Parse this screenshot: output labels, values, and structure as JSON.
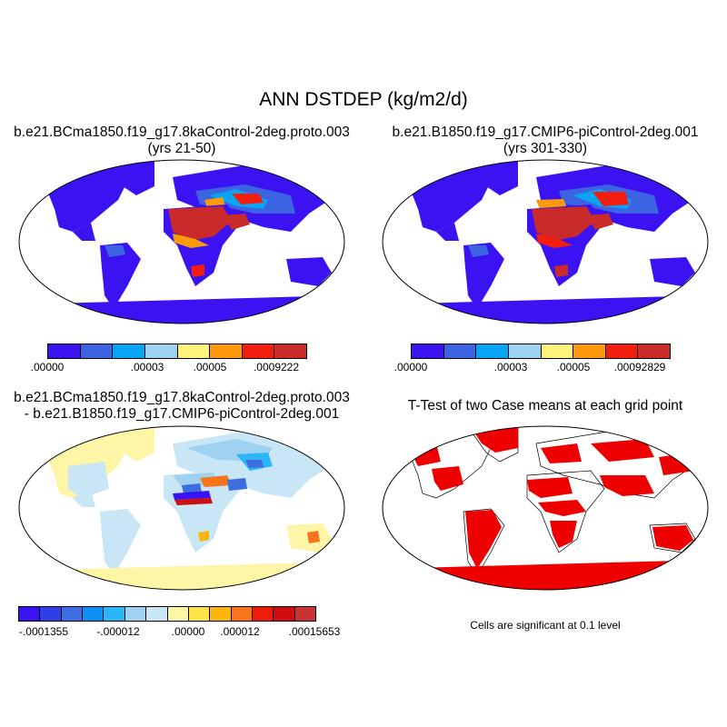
{
  "title": "ANN DSTDEP (kg/m2/d)",
  "panels": [
    {
      "title1": "b.e21.BCma1850.f19_g17.8kaControl-2deg.proto.003",
      "title2": "(yrs 21-50)",
      "colorbar": {
        "colors": [
          "#3b13f3",
          "#3c63e1",
          "#0aa4f5",
          "#9fd2f0",
          "#fdf27a",
          "#fd9a0c",
          "#f41e0e",
          "#c92a2a"
        ],
        "labels": [
          ".00000",
          ".00003",
          ".00005",
          ".0009222"
        ]
      }
    },
    {
      "title1": "b.e21.B1850.f19_g17.CMIP6-piControl-2deg.001",
      "title2": "(yrs 301-330)",
      "colorbar": {
        "colors": [
          "#3b13f3",
          "#3c63e1",
          "#0aa4f5",
          "#9fd2f0",
          "#fdf27a",
          "#fd9a0c",
          "#f41e0e",
          "#c92a2a"
        ],
        "labels": [
          ".00000",
          ".00003",
          ".00005",
          ".00092829"
        ]
      }
    },
    {
      "title1": "b.e21.BCma1850.f19_g17.8kaControl-2deg.proto.003",
      "title2": "- b.e21.B1850.f19_g17.CMIP6-piControl-2deg.001",
      "colorbar": {
        "colors": [
          "#3b13f3",
          "#2f3ee6",
          "#3d6de0",
          "#0e90f4",
          "#2cb5f8",
          "#9fd2f0",
          "#c8e6f5",
          "#fef5a6",
          "#fde24a",
          "#fdb40e",
          "#f9741a",
          "#ee1c0c",
          "#cf0f0f",
          "#c83434"
        ],
        "labels": [
          "-.0001355",
          "-.000012",
          ".00000",
          ".000012",
          ".00015653"
        ]
      }
    },
    {
      "title1": "T-Test of two Case means at each grid point",
      "note": "Cells are significant at 0.1 level"
    }
  ]
}
